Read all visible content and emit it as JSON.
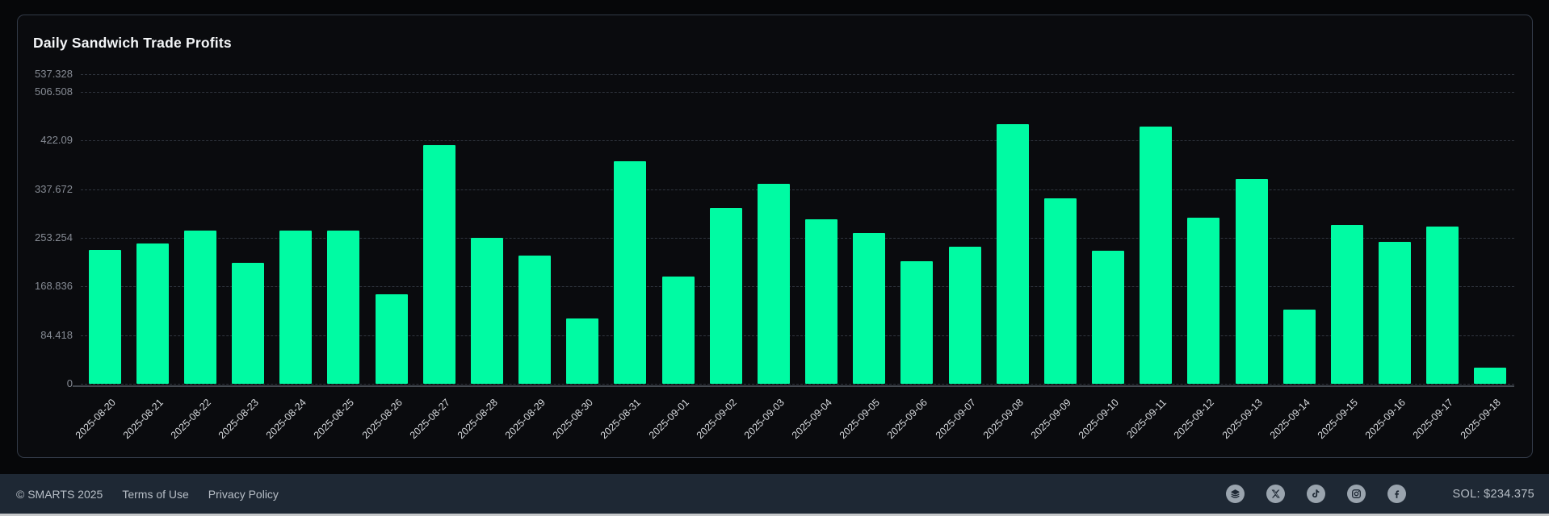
{
  "chart_data": {
    "type": "bar",
    "title": "Daily Sandwich Trade Profits",
    "xlabel": "",
    "ylabel": "",
    "legend": "none",
    "grid": "horizontal-dashed",
    "bar_color": "#00fba3",
    "ylim": [
      0,
      537.328
    ],
    "ytick_labels": [
      "0",
      "84.418",
      "168.836",
      "253.254",
      "337.672",
      "422.09",
      "506.508",
      "537.328"
    ],
    "categories": [
      "2025-08-20",
      "2025-08-21",
      "2025-08-22",
      "2025-08-23",
      "2025-08-24",
      "2025-08-25",
      "2025-08-26",
      "2025-08-27",
      "2025-08-28",
      "2025-08-29",
      "2025-08-30",
      "2025-08-31",
      "2025-09-01",
      "2025-09-02",
      "2025-09-03",
      "2025-09-04",
      "2025-09-05",
      "2025-09-06",
      "2025-09-07",
      "2025-09-08",
      "2025-09-09",
      "2025-09-10",
      "2025-09-11",
      "2025-09-12",
      "2025-09-13",
      "2025-09-14",
      "2025-09-15",
      "2025-09-16",
      "2025-09-17",
      "2025-09-18"
    ],
    "values": [
      231.6,
      243.2,
      265.6,
      209.7,
      266.5,
      266.5,
      155.9,
      414.0,
      252.6,
      222.3,
      114.0,
      385.6,
      185.6,
      305.1,
      347.0,
      285.1,
      262.3,
      212.1,
      238.2,
      450.2,
      321.4,
      230.2,
      447.0,
      287.9,
      354.9,
      129.3,
      276.3,
      246.0,
      273.5,
      27.9
    ]
  },
  "footer": {
    "copyright": "© SMARTS 2025",
    "links": [
      {
        "label": "Terms of Use"
      },
      {
        "label": "Privacy Policy"
      }
    ],
    "social_icons": [
      {
        "name": "layers-icon"
      },
      {
        "name": "x-icon"
      },
      {
        "name": "tiktok-icon"
      },
      {
        "name": "instagram-icon"
      },
      {
        "name": "facebook-icon"
      }
    ],
    "sol_price": "SOL: $234.375"
  },
  "colors": {
    "page_bg": "#060709",
    "card_bg": "#0a0b0e",
    "card_border": "#323a47",
    "bar_green": "#00fba3",
    "footer_bg": "#1e2834",
    "axis_label": "#868b94",
    "date_label": "#d6d9dd"
  }
}
